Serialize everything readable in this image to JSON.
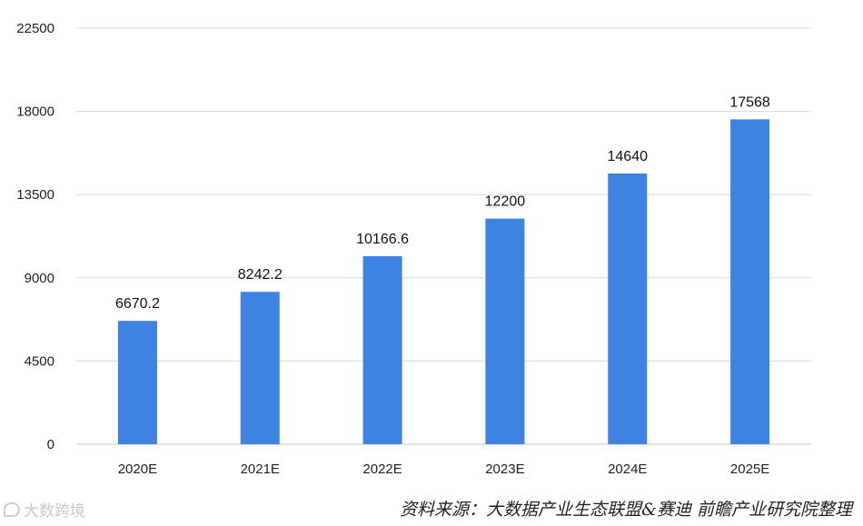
{
  "chart_data": {
    "type": "bar",
    "categories": [
      "2020E",
      "2021E",
      "2022E",
      "2023E",
      "2024E",
      "2025E"
    ],
    "values": [
      6670.2,
      8242.2,
      10166.6,
      12200,
      14640,
      17568
    ],
    "value_labels": [
      "6670.2",
      "8242.2",
      "10166.6",
      "12200",
      "14640",
      "17568"
    ],
    "ylim": [
      0,
      22500
    ],
    "yticks": [
      0,
      4500,
      9000,
      13500,
      18000,
      22500
    ],
    "ytick_labels": [
      "0",
      "4500",
      "9000",
      "13500",
      "18000",
      "22500"
    ],
    "grid": true,
    "legend": "none",
    "bar_color": "#3E82E2",
    "title": "",
    "xlabel": "",
    "ylabel": ""
  },
  "source_note": "资料来源：大数据产业生态联盟&赛迪  前瞻产业研究院整理",
  "watermark": {
    "icon": "chat-bubble-icon",
    "text": "大数跨境"
  }
}
